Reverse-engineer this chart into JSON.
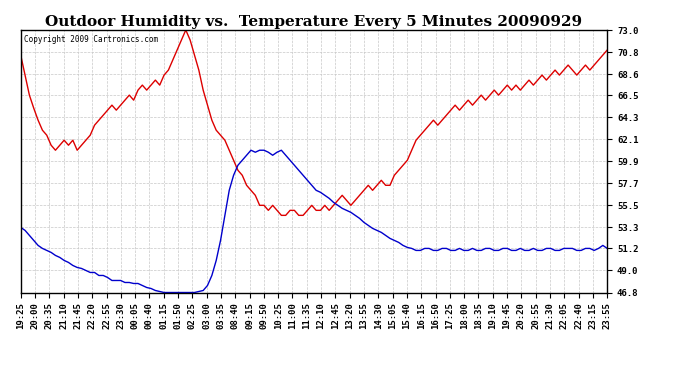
{
  "title": "Outdoor Humidity vs.  Temperature Every 5 Minutes 20090929",
  "copyright_text": "Copyright 2009 Cartronics.com",
  "bg_color": "#ffffff",
  "grid_color": "#c8c8c8",
  "ylim": [
    46.8,
    73.0
  ],
  "yticks": [
    46.8,
    49.0,
    51.2,
    53.3,
    55.5,
    57.7,
    59.9,
    62.1,
    64.3,
    66.5,
    68.6,
    70.8,
    73.0
  ],
  "temp_color": "#dd0000",
  "humidity_color": "#0000cc",
  "line_width": 1.0,
  "title_fontsize": 11,
  "tick_fontsize": 6.5,
  "time_labels": [
    "19:25",
    "20:00",
    "20:35",
    "21:10",
    "21:45",
    "22:20",
    "22:55",
    "23:30",
    "00:05",
    "00:40",
    "01:15",
    "01:50",
    "02:25",
    "03:00",
    "03:35",
    "08:40",
    "09:15",
    "09:50",
    "10:25",
    "11:00",
    "11:35",
    "12:10",
    "12:45",
    "13:20",
    "13:55",
    "14:30",
    "15:05",
    "15:40",
    "16:15",
    "16:50",
    "17:25",
    "18:00",
    "18:35",
    "19:10",
    "19:45",
    "20:20",
    "20:55",
    "21:30",
    "22:05",
    "22:40",
    "23:15",
    "23:55"
  ],
  "temp_data": [
    70.5,
    68.5,
    66.5,
    65.2,
    64.0,
    63.0,
    62.5,
    61.5,
    61.0,
    61.5,
    62.0,
    61.5,
    62.0,
    61.0,
    61.5,
    62.0,
    62.5,
    63.5,
    64.0,
    64.5,
    65.0,
    65.5,
    65.0,
    65.5,
    66.0,
    66.5,
    66.0,
    67.0,
    67.5,
    67.0,
    67.5,
    68.0,
    67.5,
    68.5,
    69.0,
    70.0,
    71.0,
    72.0,
    73.0,
    72.0,
    70.5,
    69.0,
    67.0,
    65.5,
    64.0,
    63.0,
    62.5,
    62.0,
    61.0,
    60.0,
    59.0,
    58.5,
    57.5,
    57.0,
    56.5,
    55.5,
    55.5,
    55.0,
    55.5,
    55.0,
    54.5,
    54.5,
    55.0,
    55.0,
    54.5,
    54.5,
    55.0,
    55.5,
    55.0,
    55.0,
    55.5,
    55.0,
    55.5,
    56.0,
    56.5,
    56.0,
    55.5,
    56.0,
    56.5,
    57.0,
    57.5,
    57.0,
    57.5,
    58.0,
    57.5,
    57.5,
    58.5,
    59.0,
    59.5,
    60.0,
    61.0,
    62.0,
    62.5,
    63.0,
    63.5,
    64.0,
    63.5,
    64.0,
    64.5,
    65.0,
    65.5,
    65.0,
    65.5,
    66.0,
    65.5,
    66.0,
    66.5,
    66.0,
    66.5,
    67.0,
    66.5,
    67.0,
    67.5,
    67.0,
    67.5,
    67.0,
    67.5,
    68.0,
    67.5,
    68.0,
    68.5,
    68.0,
    68.5,
    69.0,
    68.5,
    69.0,
    69.5,
    69.0,
    68.5,
    69.0,
    69.5,
    69.0,
    69.5,
    70.0,
    70.5,
    71.0
  ],
  "humidity_data": [
    53.3,
    53.0,
    52.5,
    52.0,
    51.5,
    51.2,
    51.0,
    50.8,
    50.5,
    50.3,
    50.0,
    49.8,
    49.5,
    49.3,
    49.2,
    49.0,
    48.8,
    48.8,
    48.5,
    48.5,
    48.3,
    48.0,
    48.0,
    48.0,
    47.8,
    47.8,
    47.7,
    47.7,
    47.5,
    47.3,
    47.2,
    47.0,
    46.9,
    46.8,
    46.8,
    46.8,
    46.8,
    46.8,
    46.8,
    46.8,
    46.8,
    46.9,
    47.0,
    47.5,
    48.5,
    50.0,
    52.0,
    54.5,
    57.0,
    58.5,
    59.5,
    60.0,
    60.5,
    61.0,
    60.8,
    61.0,
    61.0,
    60.8,
    60.5,
    60.8,
    61.0,
    60.5,
    60.0,
    59.5,
    59.0,
    58.5,
    58.0,
    57.5,
    57.0,
    56.8,
    56.5,
    56.2,
    55.8,
    55.5,
    55.2,
    55.0,
    54.8,
    54.5,
    54.2,
    53.8,
    53.5,
    53.2,
    53.0,
    52.8,
    52.5,
    52.2,
    52.0,
    51.8,
    51.5,
    51.3,
    51.2,
    51.0,
    51.0,
    51.2,
    51.2,
    51.0,
    51.0,
    51.2,
    51.2,
    51.0,
    51.0,
    51.2,
    51.0,
    51.0,
    51.2,
    51.0,
    51.0,
    51.2,
    51.2,
    51.0,
    51.0,
    51.2,
    51.2,
    51.0,
    51.0,
    51.2,
    51.0,
    51.0,
    51.2,
    51.0,
    51.0,
    51.2,
    51.2,
    51.0,
    51.0,
    51.2,
    51.2,
    51.2,
    51.0,
    51.0,
    51.2,
    51.2,
    51.0,
    51.2,
    51.5,
    51.2
  ]
}
